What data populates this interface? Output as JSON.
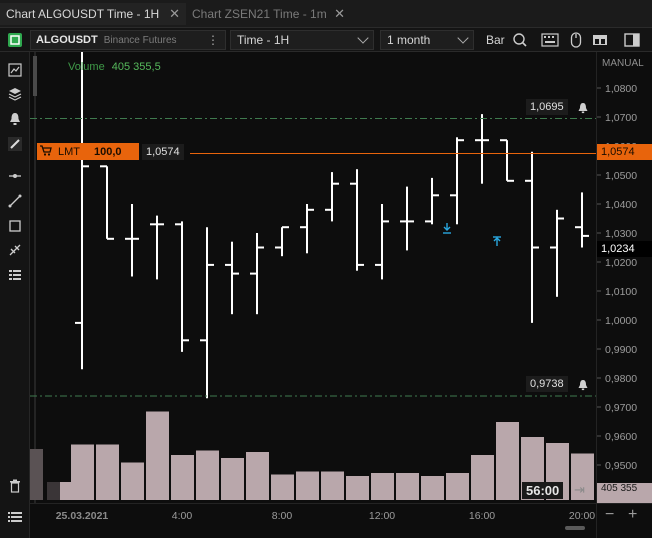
{
  "tabs": [
    {
      "label": "Chart ALGOUSDT Time - 1H",
      "active": true
    },
    {
      "label": "Chart ZSEN21 Time - 1m",
      "active": false
    }
  ],
  "toolbar": {
    "symbol": "ALGOUSDT",
    "exchange": "Binance Futures",
    "timeframe": "Time - 1H",
    "range": "1 month",
    "chart_type": "Bar"
  },
  "axis_mode": "MANUAL",
  "volume": {
    "label": "Volume",
    "value": "405 355,5"
  },
  "order": {
    "type": "LMT",
    "qty": "100,0",
    "price": "1,0574"
  },
  "alerts": [
    {
      "price": "1,0695"
    },
    {
      "price": "0,9738"
    }
  ],
  "current_price": "1,0234",
  "countdown": "56:00",
  "volume_axis_value": "405 355",
  "x_date": "25.03.2021",
  "colors": {
    "order": "#e8640c",
    "alert_line": "#3f7a4e",
    "volume": "#b9a7ab",
    "bar": "#ffffff",
    "marker": "#29a8e0"
  },
  "chart_data": {
    "type": "bar",
    "timeframe": "1H",
    "y_ticks": [
      "1,0800",
      "1,0700",
      "1,0600",
      "1,0500",
      "1,0400",
      "1,0300",
      "1,0200",
      "1,0100",
      "1,0000",
      "0,9900",
      "0,9800",
      "0,9700",
      "0,9600",
      "0,9500"
    ],
    "y_tick_values": [
      1.08,
      1.07,
      1.06,
      1.05,
      1.04,
      1.03,
      1.02,
      1.01,
      1.0,
      0.99,
      0.98,
      0.97,
      0.96,
      0.95
    ],
    "x_ticks": [
      "25.03.2021",
      "4:00",
      "8:00",
      "12:00",
      "16:00",
      "20:00"
    ],
    "x_tick_hours": [
      0,
      4,
      8,
      12,
      16,
      20
    ],
    "ohlc": [
      {
        "h": 0,
        "o": 0.999,
        "hi": 1.093,
        "lo": 0.983,
        "c": 1.053
      },
      {
        "h": 1,
        "o": 1.053,
        "hi": 1.053,
        "lo": 1.028,
        "c": 1.028
      },
      {
        "h": 2,
        "o": 1.028,
        "hi": 1.04,
        "lo": 1.015,
        "c": 1.028
      },
      {
        "h": 3,
        "o": 1.033,
        "hi": 1.036,
        "lo": 1.014,
        "c": 1.033
      },
      {
        "h": 4,
        "o": 1.033,
        "hi": 1.034,
        "lo": 0.989,
        "c": 0.993
      },
      {
        "h": 5,
        "o": 0.993,
        "hi": 1.032,
        "lo": 0.973,
        "c": 1.019
      },
      {
        "h": 6,
        "o": 1.019,
        "hi": 1.027,
        "lo": 1.002,
        "c": 1.016
      },
      {
        "h": 7,
        "o": 1.016,
        "hi": 1.03,
        "lo": 1.002,
        "c": 1.025
      },
      {
        "h": 8,
        "o": 1.025,
        "hi": 1.032,
        "lo": 1.022,
        "c": 1.032
      },
      {
        "h": 9,
        "o": 1.032,
        "hi": 1.04,
        "lo": 1.023,
        "c": 1.038
      },
      {
        "h": 10,
        "o": 1.038,
        "hi": 1.051,
        "lo": 1.034,
        "c": 1.047
      },
      {
        "h": 11,
        "o": 1.047,
        "hi": 1.052,
        "lo": 1.017,
        "c": 1.019
      },
      {
        "h": 12,
        "o": 1.019,
        "hi": 1.04,
        "lo": 1.014,
        "c": 1.034
      },
      {
        "h": 13,
        "o": 1.034,
        "hi": 1.046,
        "lo": 1.024,
        "c": 1.034
      },
      {
        "h": 14,
        "o": 1.034,
        "hi": 1.049,
        "lo": 1.033,
        "c": 1.043
      },
      {
        "h": 15,
        "o": 1.043,
        "hi": 1.063,
        "lo": 1.033,
        "c": 1.062
      },
      {
        "h": 16,
        "o": 1.062,
        "hi": 1.071,
        "lo": 1.047,
        "c": 1.062
      },
      {
        "h": 17,
        "o": 1.062,
        "hi": 1.062,
        "lo": 1.048,
        "c": 1.048
      },
      {
        "h": 18,
        "o": 1.048,
        "hi": 1.058,
        "lo": 0.999,
        "c": 1.025
      },
      {
        "h": 19,
        "o": 1.025,
        "hi": 1.038,
        "lo": 1.008,
        "c": 1.035
      },
      {
        "h": 20,
        "o": 1.032,
        "hi": 1.044,
        "lo": 1.025,
        "c": 1.029
      },
      {
        "h": 21,
        "o": 1.029,
        "hi": 1.029,
        "lo": 1.024,
        "c": 1.027
      },
      {
        "h": 22,
        "o": 1.027,
        "hi": 1.04,
        "lo": 1.013,
        "c": 1.026
      },
      {
        "h": 23,
        "o": 1.027,
        "hi": 1.03,
        "lo": 1.021,
        "c": 1.023
      }
    ],
    "volume_bars": [
      0.37,
      0.37,
      0.25,
      0.59,
      0.3,
      0.33,
      0.28,
      0.32,
      0.17,
      0.19,
      0.19,
      0.16,
      0.18,
      0.18,
      0.16,
      0.18,
      0.3,
      0.52,
      0.42,
      0.38,
      0.31,
      0.43,
      0.47,
      0.22
    ]
  }
}
